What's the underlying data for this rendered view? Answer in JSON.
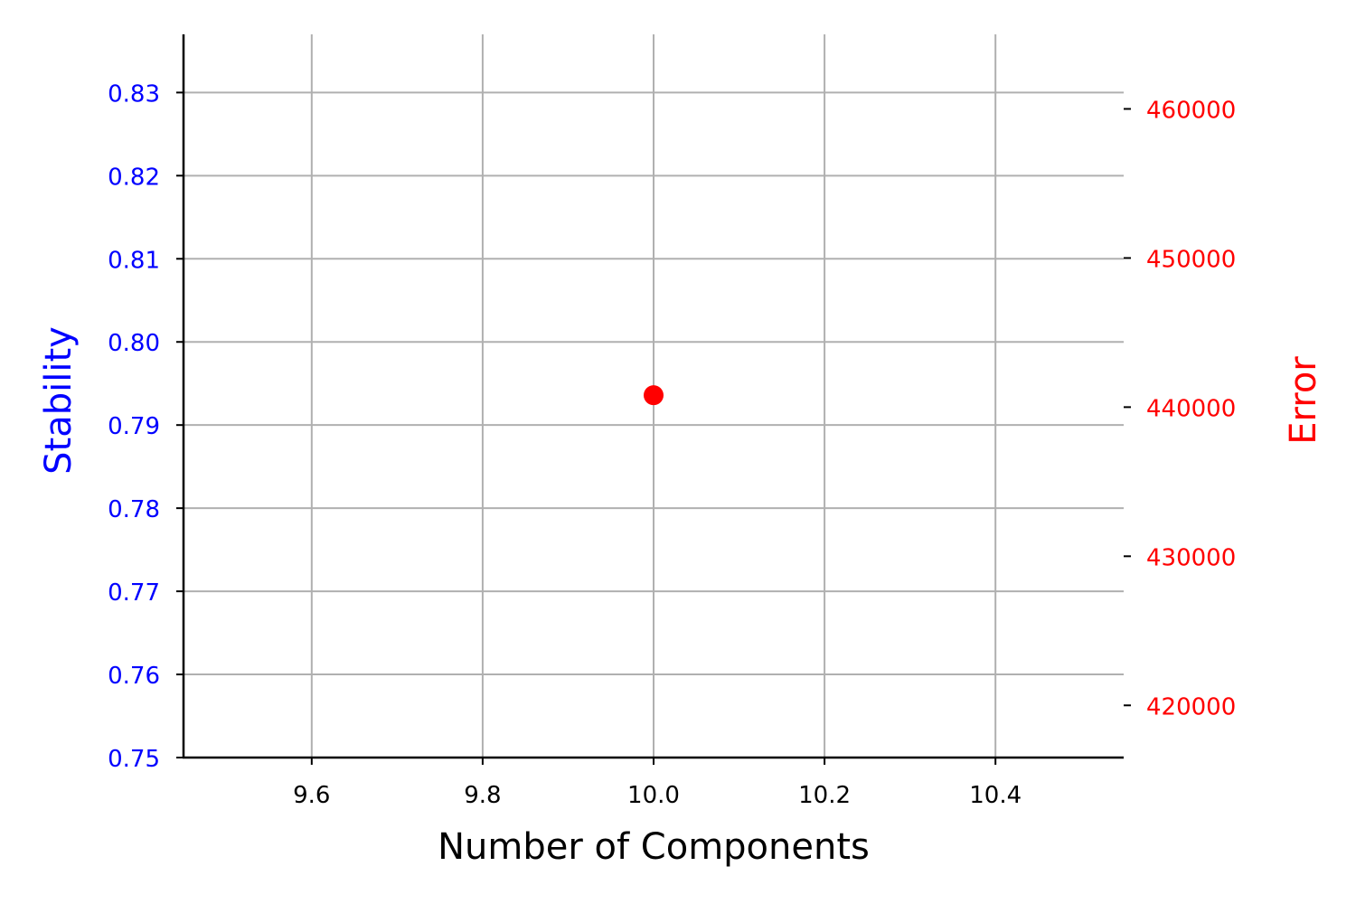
{
  "chart_data": {
    "type": "scatter",
    "title": "",
    "xlabel": "Number of Components",
    "ylabel_left": "Stability",
    "ylabel_right": "Error",
    "grid": true,
    "xlim": [
      9.45,
      10.55
    ],
    "ylim_left": [
      0.75,
      0.837
    ],
    "ylim_right": [
      416500,
      465000
    ],
    "x_ticks": [
      9.6,
      9.8,
      10.0,
      10.2,
      10.4
    ],
    "x_tick_labels": [
      "9.6",
      "9.8",
      "10.0",
      "10.2",
      "10.4"
    ],
    "y_left_ticks": [
      0.75,
      0.76,
      0.77,
      0.78,
      0.79,
      0.8,
      0.81,
      0.82,
      0.83
    ],
    "y_left_tick_labels": [
      "0.75",
      "0.76",
      "0.77",
      "0.78",
      "0.79",
      "0.80",
      "0.81",
      "0.82",
      "0.83"
    ],
    "y_right_ticks": [
      420000,
      430000,
      440000,
      450000,
      460000
    ],
    "y_right_tick_labels": [
      "420000",
      "430000",
      "440000",
      "450000",
      "460000"
    ],
    "series": [
      {
        "axis": "right",
        "color": "#ff0000",
        "marker": "circle",
        "points": [
          {
            "x": 10.0,
            "y": 440800
          }
        ]
      }
    ],
    "colors": {
      "left_axis": "#0000ff",
      "right_axis": "#ff0000",
      "grid": "#b0b0b0",
      "axis_line": "#000000",
      "x_tick_text": "#000000"
    }
  }
}
